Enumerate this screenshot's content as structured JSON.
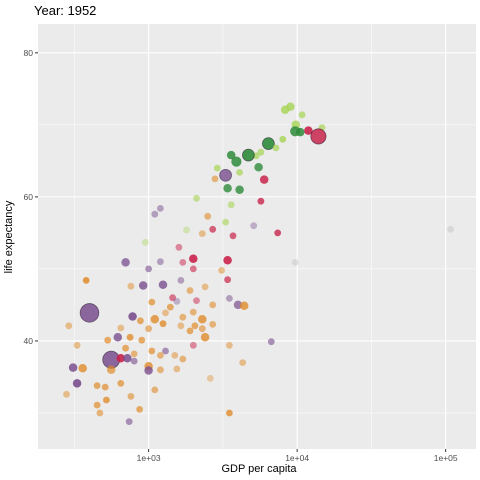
{
  "chart_data": {
    "type": "scatter",
    "title": "Year: 1952",
    "xlabel": "GDP per capita",
    "ylabel": "life expectancy",
    "x_scale": "log10",
    "xlim": [
      180,
      160000
    ],
    "ylim": [
      25,
      84
    ],
    "x_ticks": [
      {
        "value": 1000,
        "label": "1e+03"
      },
      {
        "value": 10000,
        "label": "1e+04"
      },
      {
        "value": 100000,
        "label": "1e+05"
      }
    ],
    "y_ticks": [
      {
        "value": 40,
        "label": "40"
      },
      {
        "value": 60,
        "label": "60"
      },
      {
        "value": 80,
        "label": "80"
      }
    ],
    "grid": true,
    "legend": "none",
    "panel_background": "#ebebeb",
    "grid_color": "#ffffff",
    "palette": {
      "africa": "#e08b2a",
      "asia": "#7a4f8f",
      "europe": "#2e8b3a",
      "europe_light": "#a6d454",
      "americas": "#c9244b",
      "oceania": "#bbbbbb"
    },
    "points": [
      {
        "x": 8300,
        "y": 72.1,
        "group": "europe_light",
        "size": 5,
        "alpha": 0.8
      },
      {
        "x": 9000,
        "y": 72.5,
        "group": "europe_light",
        "size": 5,
        "alpha": 0.8
      },
      {
        "x": 9800,
        "y": 70.0,
        "group": "europe_light",
        "size": 5,
        "alpha": 0.8
      },
      {
        "x": 10800,
        "y": 71.4,
        "group": "europe_light",
        "size": 4,
        "alpha": 0.7
      },
      {
        "x": 14700,
        "y": 69.6,
        "group": "europe_light",
        "size": 4,
        "alpha": 0.7
      },
      {
        "x": 9700,
        "y": 69.1,
        "group": "europe",
        "size": 6,
        "alpha": 0.85
      },
      {
        "x": 10500,
        "y": 69.0,
        "group": "europe",
        "size": 5,
        "alpha": 0.85
      },
      {
        "x": 11900,
        "y": 69.2,
        "group": "americas",
        "size": 5,
        "alpha": 0.9
      },
      {
        "x": 13900,
        "y": 68.4,
        "group": "americas",
        "size": 9,
        "alpha": 0.85
      },
      {
        "x": 8000,
        "y": 68.0,
        "group": "europe_light",
        "size": 4,
        "alpha": 0.8
      },
      {
        "x": 6400,
        "y": 67.4,
        "group": "europe",
        "size": 7,
        "alpha": 0.9
      },
      {
        "x": 7200,
        "y": 66.8,
        "group": "europe_light",
        "size": 4,
        "alpha": 0.7
      },
      {
        "x": 5700,
        "y": 66.2,
        "group": "europe_light",
        "size": 4,
        "alpha": 0.7
      },
      {
        "x": 5300,
        "y": 65.7,
        "group": "europe_light",
        "size": 4,
        "alpha": 0.7
      },
      {
        "x": 4700,
        "y": 65.8,
        "group": "europe",
        "size": 7,
        "alpha": 0.9
      },
      {
        "x": 3600,
        "y": 65.8,
        "group": "europe",
        "size": 5,
        "alpha": 0.85
      },
      {
        "x": 3900,
        "y": 64.9,
        "group": "europe",
        "size": 6,
        "alpha": 0.85
      },
      {
        "x": 5500,
        "y": 64.1,
        "group": "europe",
        "size": 5,
        "alpha": 0.8
      },
      {
        "x": 2900,
        "y": 64.0,
        "group": "europe_light",
        "size": 4,
        "alpha": 0.7
      },
      {
        "x": 3300,
        "y": 63.0,
        "group": "asia",
        "size": 7,
        "alpha": 0.8
      },
      {
        "x": 4100,
        "y": 63.4,
        "group": "europe_light",
        "size": 4,
        "alpha": 0.7
      },
      {
        "x": 6000,
        "y": 62.4,
        "group": "americas",
        "size": 5,
        "alpha": 0.85
      },
      {
        "x": 2800,
        "y": 62.5,
        "group": "africa",
        "size": 4,
        "alpha": 0.6
      },
      {
        "x": 3400,
        "y": 61.2,
        "group": "europe",
        "size": 5,
        "alpha": 0.8
      },
      {
        "x": 4100,
        "y": 61.0,
        "group": "europe",
        "size": 5,
        "alpha": 0.8
      },
      {
        "x": 2100,
        "y": 59.8,
        "group": "europe_light",
        "size": 4,
        "alpha": 0.6
      },
      {
        "x": 5700,
        "y": 59.4,
        "group": "americas",
        "size": 4,
        "alpha": 0.8
      },
      {
        "x": 3600,
        "y": 58.9,
        "group": "europe_light",
        "size": 4,
        "alpha": 0.6
      },
      {
        "x": 1200,
        "y": 58.4,
        "group": "asia",
        "size": 4,
        "alpha": 0.5
      },
      {
        "x": 1100,
        "y": 57.6,
        "group": "asia",
        "size": 4,
        "alpha": 0.5
      },
      {
        "x": 2500,
        "y": 57.3,
        "group": "africa",
        "size": 4,
        "alpha": 0.6
      },
      {
        "x": 3300,
        "y": 56.5,
        "group": "europe_light",
        "size": 4,
        "alpha": 0.6
      },
      {
        "x": 5100,
        "y": 56.0,
        "group": "asia",
        "size": 4,
        "alpha": 0.4
      },
      {
        "x": 2700,
        "y": 55.5,
        "group": "americas",
        "size": 4,
        "alpha": 0.7
      },
      {
        "x": 1800,
        "y": 55.4,
        "group": "europe_light",
        "size": 4,
        "alpha": 0.4
      },
      {
        "x": 7400,
        "y": 55.0,
        "group": "americas",
        "size": 4,
        "alpha": 0.8
      },
      {
        "x": 2300,
        "y": 54.9,
        "group": "africa",
        "size": 4,
        "alpha": 0.5
      },
      {
        "x": 3700,
        "y": 54.6,
        "group": "americas",
        "size": 4,
        "alpha": 0.7
      },
      {
        "x": 108000,
        "y": 55.5,
        "group": "oceania",
        "size": 4,
        "alpha": 0.4
      },
      {
        "x": 950,
        "y": 53.7,
        "group": "europe_light",
        "size": 4,
        "alpha": 0.4
      },
      {
        "x": 1600,
        "y": 53.0,
        "group": "americas",
        "size": 4,
        "alpha": 0.5
      },
      {
        "x": 2000,
        "y": 51.4,
        "group": "americas",
        "size": 5,
        "alpha": 0.9
      },
      {
        "x": 3400,
        "y": 51.2,
        "group": "americas",
        "size": 5,
        "alpha": 0.9
      },
      {
        "x": 1200,
        "y": 51.0,
        "group": "asia",
        "size": 4,
        "alpha": 0.5
      },
      {
        "x": 1700,
        "y": 50.9,
        "group": "americas",
        "size": 4,
        "alpha": 0.5
      },
      {
        "x": 9700,
        "y": 50.9,
        "group": "oceania",
        "size": 4,
        "alpha": 0.4
      },
      {
        "x": 700,
        "y": 50.9,
        "group": "asia",
        "size": 5,
        "alpha": 0.75
      },
      {
        "x": 1000,
        "y": 50.0,
        "group": "asia",
        "size": 4,
        "alpha": 0.6
      },
      {
        "x": 2000,
        "y": 50.0,
        "group": "americas",
        "size": 4,
        "alpha": 0.6
      },
      {
        "x": 3100,
        "y": 49.8,
        "group": "africa",
        "size": 4,
        "alpha": 0.5
      },
      {
        "x": 380,
        "y": 48.4,
        "group": "africa",
        "size": 4,
        "alpha": 0.85
      },
      {
        "x": 1650,
        "y": 48.4,
        "group": "asia",
        "size": 4,
        "alpha": 0.5
      },
      {
        "x": 3400,
        "y": 48.5,
        "group": "americas",
        "size": 4,
        "alpha": 0.7
      },
      {
        "x": 1250,
        "y": 47.8,
        "group": "asia",
        "size": 5,
        "alpha": 0.8
      },
      {
        "x": 920,
        "y": 47.7,
        "group": "asia",
        "size": 5,
        "alpha": 0.8
      },
      {
        "x": 760,
        "y": 47.6,
        "group": "africa",
        "size": 4,
        "alpha": 0.5
      },
      {
        "x": 1900,
        "y": 47.0,
        "group": "africa",
        "size": 4,
        "alpha": 0.6
      },
      {
        "x": 2400,
        "y": 47.5,
        "group": "africa",
        "size": 4,
        "alpha": 0.5
      },
      {
        "x": 1450,
        "y": 46.0,
        "group": "americas",
        "size": 4,
        "alpha": 0.6
      },
      {
        "x": 3500,
        "y": 45.9,
        "group": "asia",
        "size": 4,
        "alpha": 0.5
      },
      {
        "x": 2100,
        "y": 45.6,
        "group": "americas",
        "size": 4,
        "alpha": 0.5
      },
      {
        "x": 1550,
        "y": 45.5,
        "group": "asia",
        "size": 4,
        "alpha": 0.4
      },
      {
        "x": 1050,
        "y": 45.4,
        "group": "africa",
        "size": 4,
        "alpha": 0.7
      },
      {
        "x": 2700,
        "y": 45.0,
        "group": "africa",
        "size": 4,
        "alpha": 0.6
      },
      {
        "x": 4000,
        "y": 45.0,
        "group": "asia",
        "size": 5,
        "alpha": 0.7
      },
      {
        "x": 4400,
        "y": 44.9,
        "group": "africa",
        "size": 5,
        "alpha": 0.8
      },
      {
        "x": 1400,
        "y": 44.7,
        "group": "africa",
        "size": 4,
        "alpha": 0.7
      },
      {
        "x": 2000,
        "y": 44.0,
        "group": "africa",
        "size": 4,
        "alpha": 0.6
      },
      {
        "x": 1300,
        "y": 43.9,
        "group": "africa",
        "size": 4,
        "alpha": 0.5
      },
      {
        "x": 780,
        "y": 43.4,
        "group": "asia",
        "size": 5,
        "alpha": 0.9
      },
      {
        "x": 1700,
        "y": 43.3,
        "group": "africa",
        "size": 4,
        "alpha": 0.6
      },
      {
        "x": 2300,
        "y": 43.0,
        "group": "africa",
        "size": 5,
        "alpha": 0.8
      },
      {
        "x": 1100,
        "y": 43.0,
        "group": "africa",
        "size": 5,
        "alpha": 0.8
      },
      {
        "x": 880,
        "y": 42.8,
        "group": "africa",
        "size": 4,
        "alpha": 0.7
      },
      {
        "x": 1250,
        "y": 42.4,
        "group": "africa",
        "size": 4,
        "alpha": 0.8
      },
      {
        "x": 2050,
        "y": 42.1,
        "group": "africa",
        "size": 4,
        "alpha": 0.7
      },
      {
        "x": 2700,
        "y": 42.3,
        "group": "africa",
        "size": 4,
        "alpha": 0.6
      },
      {
        "x": 1650,
        "y": 42.1,
        "group": "africa",
        "size": 4,
        "alpha": 0.5
      },
      {
        "x": 650,
        "y": 41.8,
        "group": "africa",
        "size": 4,
        "alpha": 0.5
      },
      {
        "x": 1000,
        "y": 41.7,
        "group": "africa",
        "size": 4,
        "alpha": 0.6
      },
      {
        "x": 2300,
        "y": 41.7,
        "group": "africa",
        "size": 4,
        "alpha": 0.6
      },
      {
        "x": 290,
        "y": 42.1,
        "group": "africa",
        "size": 4,
        "alpha": 0.5
      },
      {
        "x": 1900,
        "y": 41.4,
        "group": "africa",
        "size": 4,
        "alpha": 0.7
      },
      {
        "x": 2400,
        "y": 40.5,
        "group": "africa",
        "size": 5,
        "alpha": 0.8
      },
      {
        "x": 750,
        "y": 40.5,
        "group": "africa",
        "size": 4,
        "alpha": 0.8
      },
      {
        "x": 900,
        "y": 40.1,
        "group": "africa",
        "size": 4,
        "alpha": 0.7
      },
      {
        "x": 530,
        "y": 40.1,
        "group": "africa",
        "size": 4,
        "alpha": 0.7
      },
      {
        "x": 620,
        "y": 40.5,
        "group": "asia",
        "size": 5,
        "alpha": 0.8
      },
      {
        "x": 6700,
        "y": 39.9,
        "group": "asia",
        "size": 4,
        "alpha": 0.6
      },
      {
        "x": 330,
        "y": 39.4,
        "group": "africa",
        "size": 4,
        "alpha": 0.5
      },
      {
        "x": 2000,
        "y": 39.4,
        "group": "americas",
        "size": 4,
        "alpha": 0.5
      },
      {
        "x": 3500,
        "y": 39.4,
        "group": "africa",
        "size": 4,
        "alpha": 0.5
      },
      {
        "x": 700,
        "y": 39.0,
        "group": "africa",
        "size": 4,
        "alpha": 0.7
      },
      {
        "x": 1050,
        "y": 38.6,
        "group": "africa",
        "size": 4,
        "alpha": 0.7
      },
      {
        "x": 1300,
        "y": 38.6,
        "group": "asia",
        "size": 4,
        "alpha": 0.6
      },
      {
        "x": 800,
        "y": 38.2,
        "group": "africa",
        "size": 4,
        "alpha": 0.6
      },
      {
        "x": 1200,
        "y": 38.0,
        "group": "africa",
        "size": 4,
        "alpha": 0.6
      },
      {
        "x": 1700,
        "y": 37.5,
        "group": "africa",
        "size": 4,
        "alpha": 0.6
      },
      {
        "x": 1500,
        "y": 38.0,
        "group": "africa",
        "size": 4,
        "alpha": 0.5
      },
      {
        "x": 400,
        "y": 43.9,
        "group": "asia",
        "size": 11,
        "alpha": 0.85
      },
      {
        "x": 560,
        "y": 37.4,
        "group": "asia",
        "size": 10,
        "alpha": 0.85
      },
      {
        "x": 650,
        "y": 37.6,
        "group": "americas",
        "size": 5,
        "alpha": 0.9
      },
      {
        "x": 720,
        "y": 37.6,
        "group": "asia",
        "size": 5,
        "alpha": 0.85
      },
      {
        "x": 800,
        "y": 37.2,
        "group": "asia",
        "size": 4,
        "alpha": 0.6
      },
      {
        "x": 1000,
        "y": 36.5,
        "group": "africa",
        "size": 5,
        "alpha": 0.8
      },
      {
        "x": 1200,
        "y": 36.0,
        "group": "africa",
        "size": 4,
        "alpha": 0.6
      },
      {
        "x": 1550,
        "y": 36.1,
        "group": "africa",
        "size": 4,
        "alpha": 0.5
      },
      {
        "x": 4300,
        "y": 37.0,
        "group": "africa",
        "size": 4,
        "alpha": 0.5
      },
      {
        "x": 310,
        "y": 36.3,
        "group": "asia",
        "size": 5,
        "alpha": 0.85
      },
      {
        "x": 360,
        "y": 36.2,
        "group": "africa",
        "size": 5,
        "alpha": 0.8
      },
      {
        "x": 560,
        "y": 36.0,
        "group": "africa",
        "size": 5,
        "alpha": 0.7
      },
      {
        "x": 1000,
        "y": 35.9,
        "group": "asia",
        "size": 5,
        "alpha": 0.8
      },
      {
        "x": 330,
        "y": 34.1,
        "group": "asia",
        "size": 5,
        "alpha": 0.9
      },
      {
        "x": 450,
        "y": 33.8,
        "group": "africa",
        "size": 4,
        "alpha": 0.7
      },
      {
        "x": 510,
        "y": 33.6,
        "group": "africa",
        "size": 4,
        "alpha": 0.7
      },
      {
        "x": 650,
        "y": 34.1,
        "group": "africa",
        "size": 4,
        "alpha": 0.7
      },
      {
        "x": 2600,
        "y": 34.8,
        "group": "africa",
        "size": 4,
        "alpha": 0.4
      },
      {
        "x": 1100,
        "y": 33.2,
        "group": "africa",
        "size": 4,
        "alpha": 0.6
      },
      {
        "x": 280,
        "y": 32.6,
        "group": "africa",
        "size": 4,
        "alpha": 0.5
      },
      {
        "x": 760,
        "y": 32.3,
        "group": "africa",
        "size": 4,
        "alpha": 0.6
      },
      {
        "x": 520,
        "y": 31.8,
        "group": "africa",
        "size": 4,
        "alpha": 0.8
      },
      {
        "x": 450,
        "y": 31.1,
        "group": "africa",
        "size": 4,
        "alpha": 0.7
      },
      {
        "x": 870,
        "y": 30.5,
        "group": "africa",
        "size": 4,
        "alpha": 0.7
      },
      {
        "x": 470,
        "y": 30.0,
        "group": "africa",
        "size": 4,
        "alpha": 0.6
      },
      {
        "x": 3500,
        "y": 30.0,
        "group": "africa",
        "size": 4,
        "alpha": 0.8
      },
      {
        "x": 740,
        "y": 28.8,
        "group": "asia",
        "size": 4,
        "alpha": 0.6
      }
    ]
  }
}
